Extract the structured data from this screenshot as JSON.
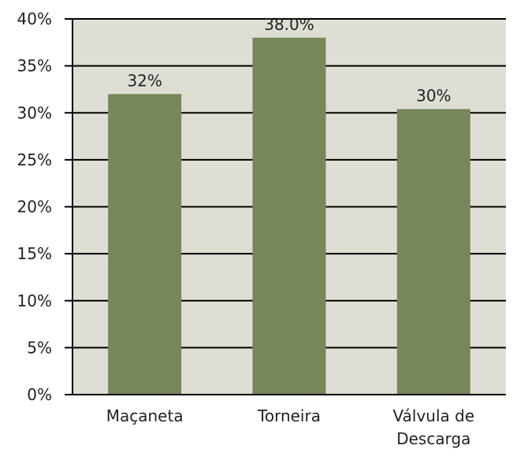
{
  "chart_data": {
    "type": "bar",
    "title": "",
    "xlabel": "",
    "ylabel": "",
    "categories": [
      [
        "Maçaneta"
      ],
      [
        "Torneira"
      ],
      [
        "Válvula de",
        "Descarga"
      ]
    ],
    "values": [
      32,
      38,
      30.4
    ],
    "data_labels": [
      "32%",
      "38.0%",
      "30%"
    ],
    "ylim": [
      0,
      40
    ],
    "y_ticks": [
      0,
      5,
      10,
      15,
      20,
      25,
      30,
      35,
      40
    ],
    "y_tick_labels": [
      "0%",
      "5%",
      "10%",
      "15%",
      "20%",
      "25%",
      "30%",
      "35%",
      "40%"
    ],
    "grid": true,
    "legend": false,
    "colors": {
      "plot_background": "#deded4",
      "bar": "#76875a",
      "grid": "#000000",
      "text": "#222222"
    }
  }
}
